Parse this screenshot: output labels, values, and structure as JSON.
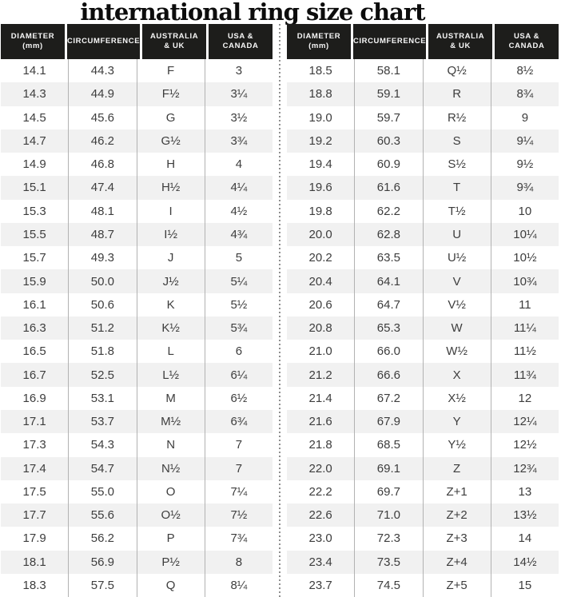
{
  "title": "international ring size chart",
  "chart_data": {
    "type": "table",
    "title": "international ring size chart",
    "columns": [
      [
        "DIAMETER",
        "(mm)"
      ],
      [
        "CIRCUMFERENCE"
      ],
      [
        "AUSTRALIA",
        "& UK"
      ],
      [
        "USA &",
        "CANADA"
      ]
    ],
    "tables": {
      "left": [
        [
          "14.1",
          "44.3",
          "F",
          "3"
        ],
        [
          "14.3",
          "44.9",
          "F½",
          "3¼"
        ],
        [
          "14.5",
          "45.6",
          "G",
          "3½"
        ],
        [
          "14.7",
          "46.2",
          "G½",
          "3¾"
        ],
        [
          "14.9",
          "46.8",
          "H",
          "4"
        ],
        [
          "15.1",
          "47.4",
          "H½",
          "4¼"
        ],
        [
          "15.3",
          "48.1",
          "I",
          "4½"
        ],
        [
          "15.5",
          "48.7",
          "I½",
          "4¾"
        ],
        [
          "15.7",
          "49.3",
          "J",
          "5"
        ],
        [
          "15.9",
          "50.0",
          "J½",
          "5¼"
        ],
        [
          "16.1",
          "50.6",
          "K",
          "5½"
        ],
        [
          "16.3",
          "51.2",
          "K½",
          "5¾"
        ],
        [
          "16.5",
          "51.8",
          "L",
          "6"
        ],
        [
          "16.7",
          "52.5",
          "L½",
          "6¼"
        ],
        [
          "16.9",
          "53.1",
          "M",
          "6½"
        ],
        [
          "17.1",
          "53.7",
          "M½",
          "6¾"
        ],
        [
          "17.3",
          "54.3",
          "N",
          "7"
        ],
        [
          "17.4",
          "54.7",
          "N½",
          "7"
        ],
        [
          "17.5",
          "55.0",
          "O",
          "7¼"
        ],
        [
          "17.7",
          "55.6",
          "O½",
          "7½"
        ],
        [
          "17.9",
          "56.2",
          "P",
          "7¾"
        ],
        [
          "18.1",
          "56.9",
          "P½",
          "8"
        ],
        [
          "18.3",
          "57.5",
          "Q",
          "8¼"
        ]
      ],
      "right": [
        [
          "18.5",
          "58.1",
          "Q½",
          "8½"
        ],
        [
          "18.8",
          "59.1",
          "R",
          "8¾"
        ],
        [
          "19.0",
          "59.7",
          "R½",
          "9"
        ],
        [
          "19.2",
          "60.3",
          "S",
          "9¼"
        ],
        [
          "19.4",
          "60.9",
          "S½",
          "9½"
        ],
        [
          "19.6",
          "61.6",
          "T",
          "9¾"
        ],
        [
          "19.8",
          "62.2",
          "T½",
          "10"
        ],
        [
          "20.0",
          "62.8",
          "U",
          "10¼"
        ],
        [
          "20.2",
          "63.5",
          "U½",
          "10½"
        ],
        [
          "20.4",
          "64.1",
          "V",
          "10¾"
        ],
        [
          "20.6",
          "64.7",
          "V½",
          "11"
        ],
        [
          "20.8",
          "65.3",
          "W",
          "11¼"
        ],
        [
          "21.0",
          "66.0",
          "W½",
          "11½"
        ],
        [
          "21.2",
          "66.6",
          "X",
          "11¾"
        ],
        [
          "21.4",
          "67.2",
          "X½",
          "12"
        ],
        [
          "21.6",
          "67.9",
          "Y",
          "12¼"
        ],
        [
          "21.8",
          "68.5",
          "Y½",
          "12½"
        ],
        [
          "22.0",
          "69.1",
          "Z",
          "12¾"
        ],
        [
          "22.2",
          "69.7",
          "Z+1",
          "13"
        ],
        [
          "22.6",
          "71.0",
          "Z+2",
          "13½"
        ],
        [
          "23.0",
          "72.3",
          "Z+3",
          "14"
        ],
        [
          "23.4",
          "73.5",
          "Z+4",
          "14½"
        ],
        [
          "23.7",
          "74.5",
          "Z+5",
          "15"
        ]
      ]
    }
  },
  "colors": {
    "header_bg": "#1d1d1b",
    "header_text": "#f7f7f7",
    "body_text": "#3d3d3d",
    "alt_row": "#f1f1f1",
    "separator": "#b2b2b2",
    "divider_dots": "#8f8f8f"
  }
}
